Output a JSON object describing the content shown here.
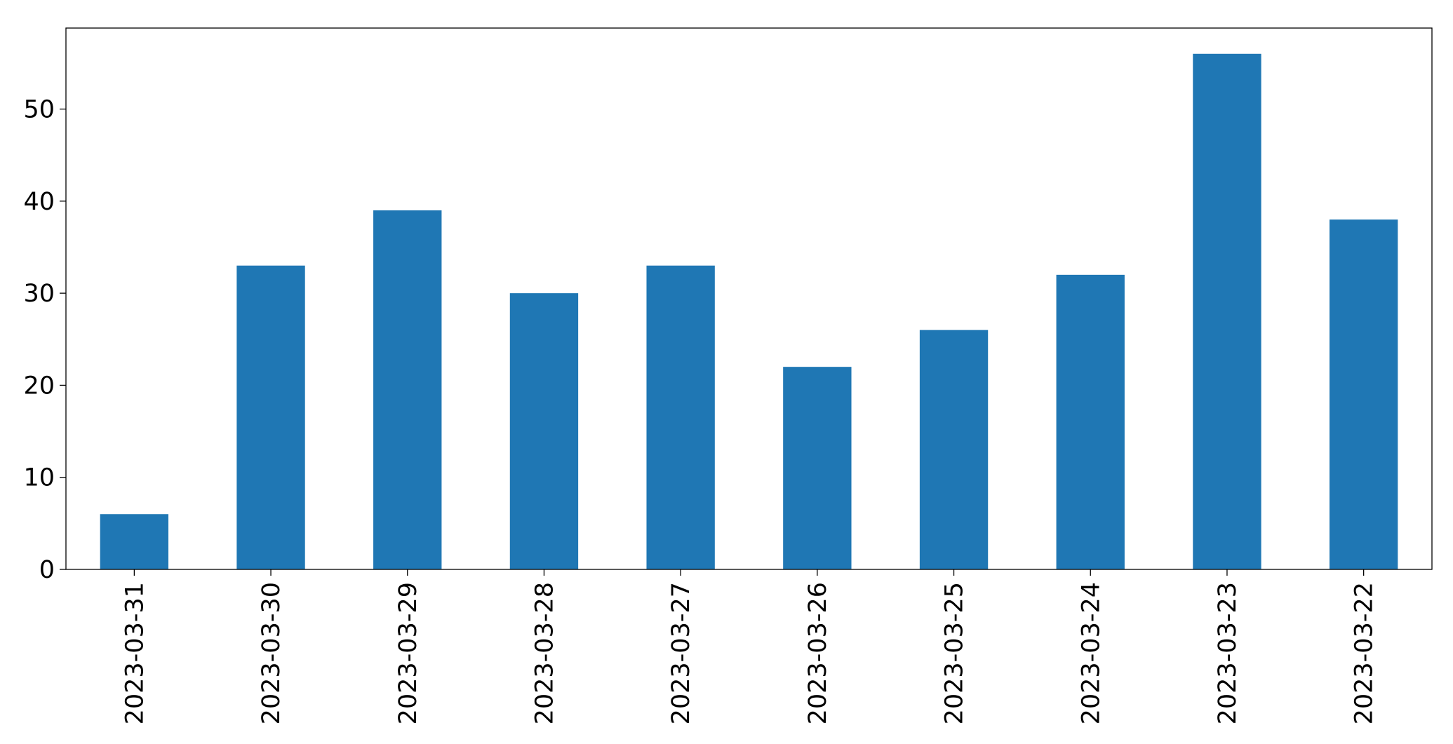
{
  "chart_data": {
    "type": "bar",
    "categories": [
      "2023-03-31",
      "2023-03-30",
      "2023-03-29",
      "2023-03-28",
      "2023-03-27",
      "2023-03-26",
      "2023-03-25",
      "2023-03-24",
      "2023-03-23",
      "2023-03-22"
    ],
    "values": [
      6,
      33,
      39,
      30,
      33,
      22,
      26,
      32,
      56,
      38
    ],
    "color": "#1f77b4",
    "ylim": [
      0,
      58.8
    ],
    "yticks": [
      0,
      10,
      20,
      30,
      40,
      50
    ],
    "grid": false
  }
}
